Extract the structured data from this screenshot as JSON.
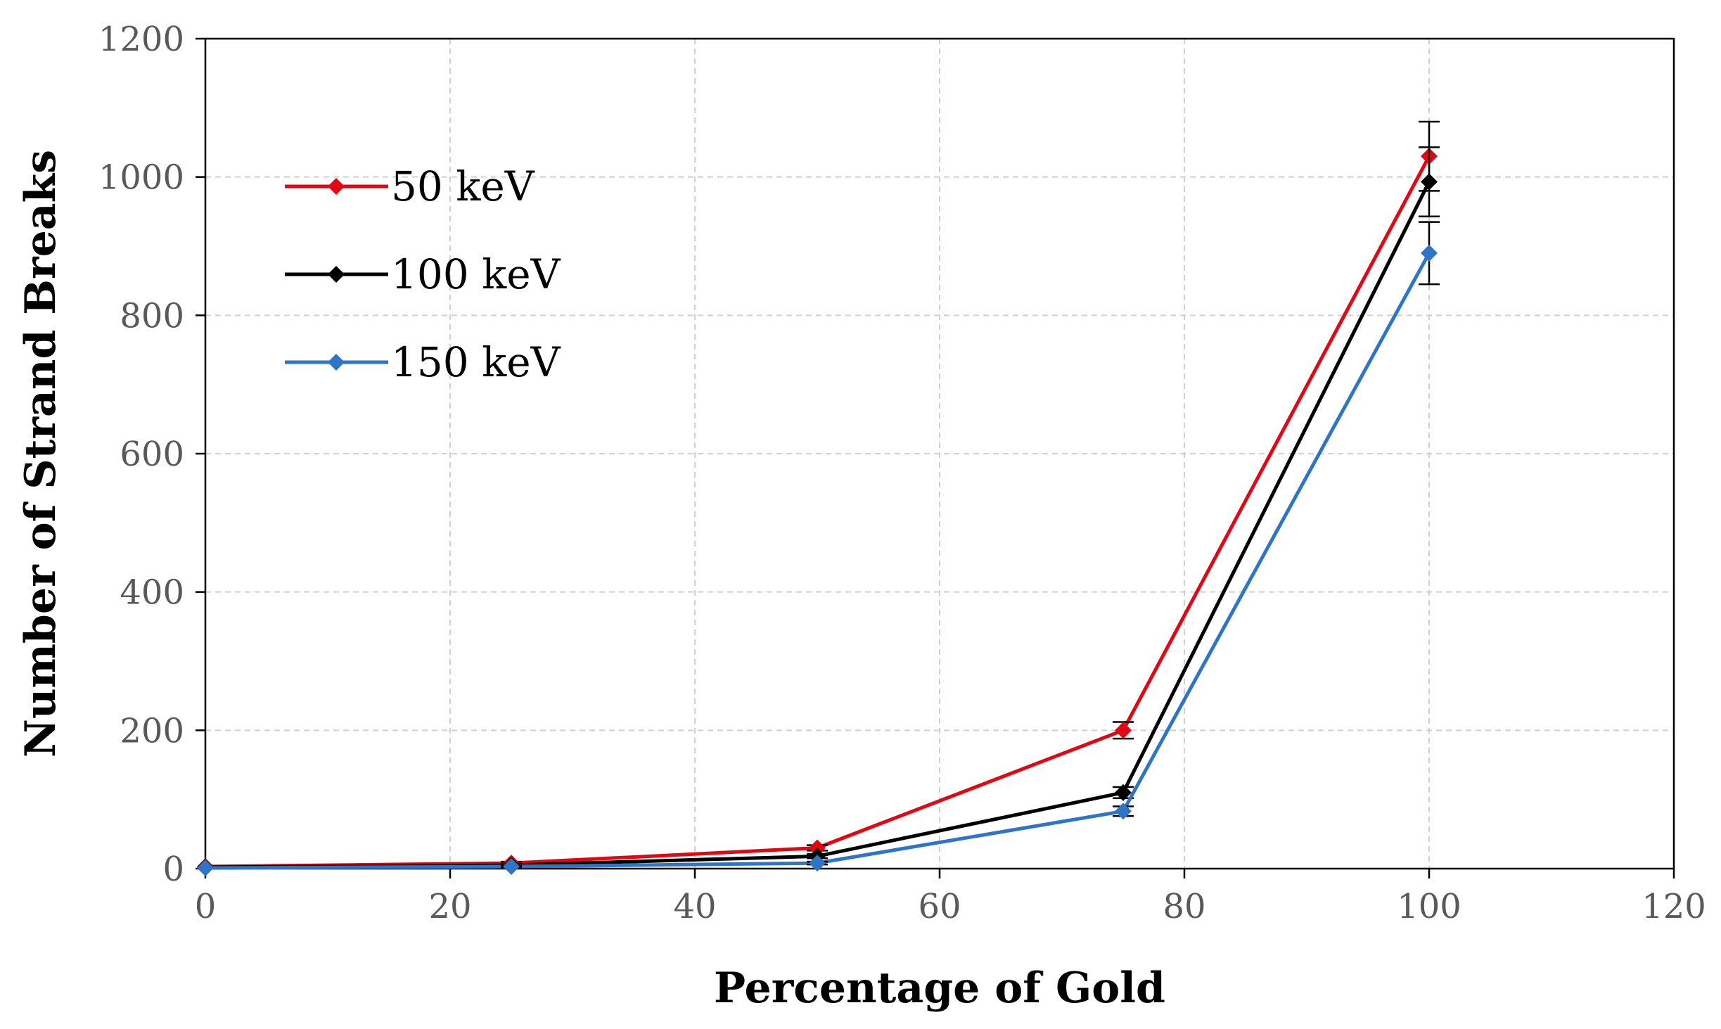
{
  "chart_data": {
    "type": "line",
    "title": "",
    "xlabel": "Percentage of Gold",
    "ylabel": "Number of Strand Breaks",
    "xlim": [
      0,
      120
    ],
    "ylim": [
      0,
      1200
    ],
    "xticks": [
      0,
      20,
      40,
      60,
      80,
      100,
      120
    ],
    "yticks": [
      0,
      200,
      400,
      600,
      800,
      1000,
      1200
    ],
    "grid": true,
    "legend_position": "top-left",
    "x": [
      0,
      25,
      50,
      75,
      100
    ],
    "series": [
      {
        "name": "50 keV",
        "color": "#e30613",
        "values": [
          3,
          8,
          30,
          200,
          1030
        ],
        "errors": [
          0,
          2,
          4,
          12,
          50
        ]
      },
      {
        "name": "100 keV",
        "color": "#000000",
        "values": [
          2,
          5,
          18,
          110,
          993
        ],
        "errors": [
          0,
          2,
          3,
          8,
          50
        ]
      },
      {
        "name": "150 keV",
        "color": "#2e75c8",
        "values": [
          1,
          3,
          8,
          83,
          890
        ],
        "errors": [
          0,
          1,
          2,
          7,
          45
        ]
      }
    ]
  }
}
